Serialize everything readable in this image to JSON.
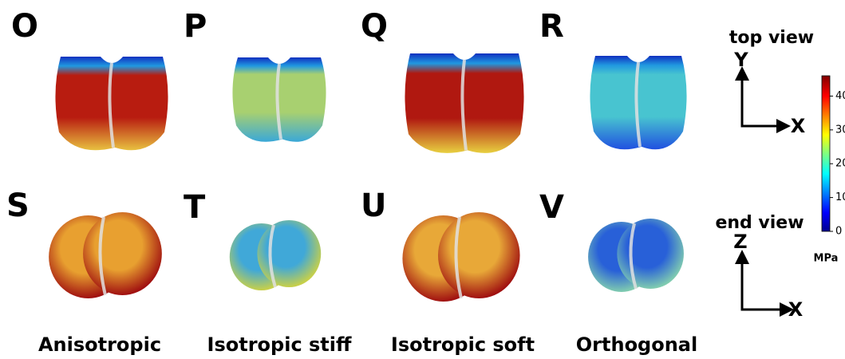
{
  "panels": [
    "O",
    "P",
    "Q",
    "R",
    "S",
    "T",
    "U",
    "V"
  ],
  "columns": [
    "Anisotropic",
    "Isotropic stiff",
    "Isotropic soft",
    "Orthogonal"
  ],
  "top_view": {
    "title": "top view",
    "axes": [
      "Y",
      "X"
    ]
  },
  "end_view": {
    "title": "end view",
    "axes": [
      "Z",
      "X"
    ]
  },
  "colorbar": {
    "lim": [
      0,
      46
    ],
    "ticks": [
      0,
      10,
      20,
      30,
      40
    ],
    "label": "MPa"
  }
}
